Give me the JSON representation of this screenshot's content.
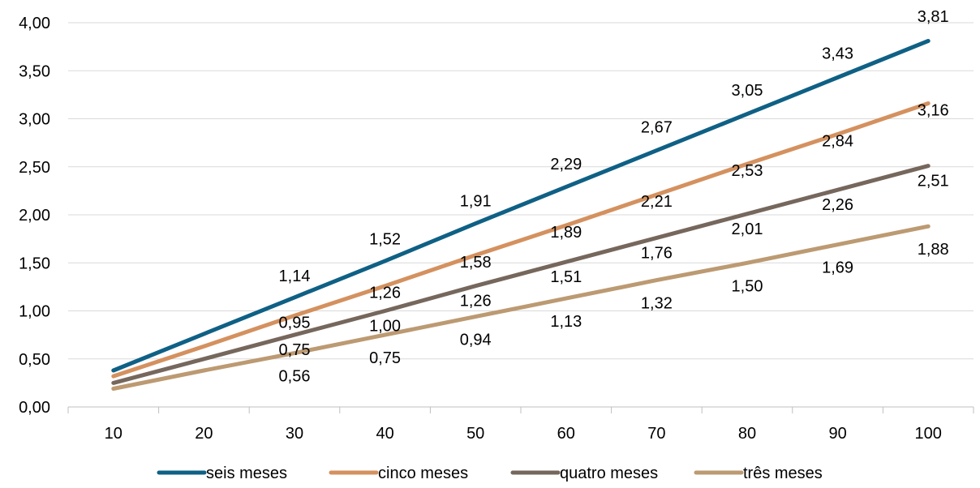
{
  "chart_data": {
    "type": "line",
    "x": [
      10,
      20,
      30,
      40,
      50,
      60,
      70,
      80,
      90,
      100
    ],
    "ylim": [
      0,
      4
    ],
    "yticks": [
      "0,00",
      "0,50",
      "1,00",
      "1,50",
      "2,00",
      "2,50",
      "3,00",
      "3,50",
      "4,00"
    ],
    "xticks": [
      "10",
      "20",
      "30",
      "40",
      "50",
      "60",
      "70",
      "80",
      "90",
      "100"
    ],
    "grid": "horizontal",
    "legend_position": "bottom",
    "series": [
      {
        "name": "seis meses",
        "color": "#0F6085",
        "values": [
          0.38,
          0.76,
          1.14,
          1.52,
          1.91,
          2.29,
          2.67,
          3.05,
          3.43,
          3.81
        ],
        "labels": [
          null,
          null,
          "1,14",
          "1,52",
          "1,91",
          "2,29",
          "2,67",
          "3,05",
          "3,43",
          "3,81"
        ]
      },
      {
        "name": "cinco meses",
        "color": "#D4915F",
        "values": [
          0.32,
          0.63,
          0.95,
          1.26,
          1.58,
          1.89,
          2.21,
          2.53,
          2.84,
          3.16
        ],
        "labels": [
          null,
          null,
          "0,95",
          "1,26",
          "1,58",
          "1,89",
          "2,21",
          "2,53",
          "2,84",
          "3,16"
        ]
      },
      {
        "name": "quatro meses",
        "color": "#76675D",
        "values": [
          0.25,
          0.5,
          0.75,
          1.0,
          1.26,
          1.51,
          1.76,
          2.01,
          2.26,
          2.51
        ],
        "labels": [
          null,
          null,
          "0,75",
          "1,00",
          "1,26",
          "1,51",
          "1,76",
          "2,01",
          "2,26",
          "2,51"
        ]
      },
      {
        "name": "três meses",
        "color": "#BC9A72",
        "values": [
          0.19,
          0.38,
          0.56,
          0.75,
          0.94,
          1.13,
          1.32,
          1.5,
          1.69,
          1.88
        ],
        "labels": [
          null,
          null,
          "0,56",
          "0,75",
          "0,94",
          "1,13",
          "1,32",
          "1,50",
          "1,69",
          "1,88"
        ]
      }
    ]
  }
}
